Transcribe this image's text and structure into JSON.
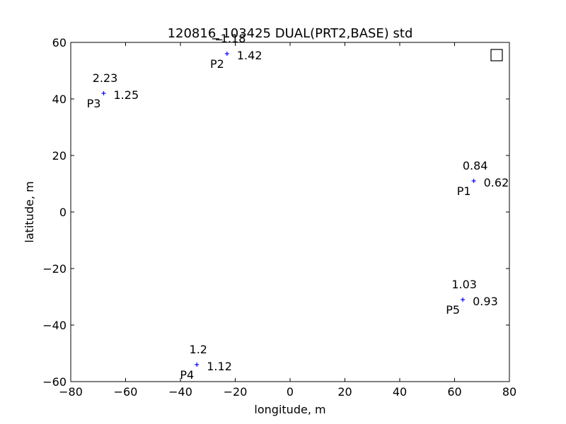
{
  "chart_data": {
    "type": "scatter",
    "title": "120816_103425 DUAL(PRT2,BASE) std",
    "xlabel": "longitude, m",
    "ylabel": "latitude, m",
    "xlim": [
      -80,
      80
    ],
    "ylim": [
      -60,
      60
    ],
    "xticks": [
      "−80",
      "−60",
      "−40",
      "−20",
      "0",
      "20",
      "40",
      "60",
      "80"
    ],
    "yticks": [
      "−60",
      "−40",
      "−20",
      "0",
      "20",
      "40",
      "60"
    ],
    "grid": false,
    "legend": {
      "position": "top-right",
      "entries": [
        ""
      ]
    },
    "marker": "+",
    "marker_color": "#0000ff",
    "points": [
      {
        "label": "P1",
        "x": 67,
        "y": 11,
        "top_value": "0.84",
        "right_value": "0.62"
      },
      {
        "label": "P2",
        "x": -23,
        "y": 56,
        "top_value": "−1.18",
        "right_value": "1.42"
      },
      {
        "label": "P3",
        "x": -68,
        "y": 42,
        "top_value": "2.23",
        "right_value": "1.25"
      },
      {
        "label": "P4",
        "x": -34,
        "y": -54,
        "top_value": "1.2",
        "right_value": "1.12"
      },
      {
        "label": "P5",
        "x": 63,
        "y": -31,
        "top_value": "1.03",
        "right_value": "0.93"
      }
    ]
  }
}
